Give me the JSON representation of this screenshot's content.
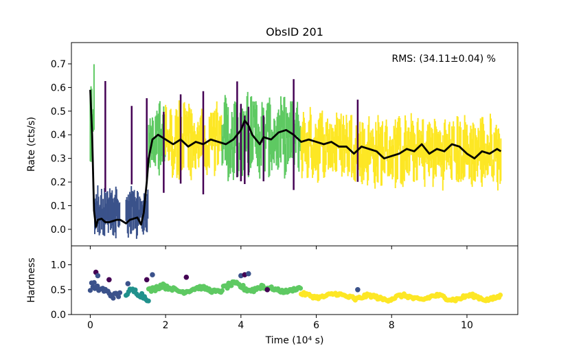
{
  "chart_data": {
    "type": "line",
    "title": "ObsID 201",
    "annotation": "RMS:  (34.11±0.04) %",
    "xlabel": "Time (10⁴ s)",
    "xlim": [
      -0.5,
      11.35
    ],
    "xticks": [
      0,
      2,
      4,
      6,
      8,
      10
    ],
    "colormap": [
      "#440154",
      "#3b528b",
      "#21918c",
      "#5ec962",
      "#fde725"
    ],
    "smooth_color": "#000000",
    "panels": {
      "rate": {
        "ylabel": "Rate (cts/s)",
        "ylim": [
          -0.07,
          0.79
        ],
        "yticks": [
          0.0,
          0.1,
          0.2,
          0.3,
          0.4,
          0.5,
          0.6,
          0.7
        ],
        "ytick_labels": [
          "0.0",
          "0.1",
          "0.2",
          "0.3",
          "0.4",
          "0.5",
          "0.6",
          "0.7"
        ],
        "smoothed_rate": {
          "x": [
            0.0,
            0.05,
            0.1,
            0.15,
            0.2,
            0.3,
            0.4,
            0.5,
            0.6,
            0.7,
            0.8,
            0.95,
            1.05,
            1.15,
            1.25,
            1.35,
            1.42,
            1.5,
            1.55,
            1.65,
            1.8,
            2.0,
            2.2,
            2.4,
            2.6,
            2.8,
            3.0,
            3.2,
            3.4,
            3.6,
            3.8,
            4.0,
            4.1,
            4.2,
            4.3,
            4.5,
            4.6,
            4.8,
            5.0,
            5.2,
            5.4,
            5.6,
            5.8,
            6.0,
            6.2,
            6.4,
            6.6,
            6.8,
            7.0,
            7.2,
            7.4,
            7.6,
            7.8,
            8.0,
            8.2,
            8.4,
            8.6,
            8.8,
            9.0,
            9.2,
            9.4,
            9.6,
            9.8,
            10.0,
            10.2,
            10.4,
            10.6,
            10.8,
            10.9
          ],
          "y": [
            0.59,
            0.4,
            0.08,
            0.01,
            0.04,
            0.045,
            0.03,
            0.03,
            0.035,
            0.04,
            0.04,
            0.025,
            0.04,
            0.045,
            0.05,
            0.02,
            0.07,
            0.2,
            0.3,
            0.38,
            0.4,
            0.38,
            0.36,
            0.38,
            0.35,
            0.37,
            0.36,
            0.38,
            0.37,
            0.36,
            0.38,
            0.42,
            0.46,
            0.44,
            0.4,
            0.36,
            0.39,
            0.38,
            0.41,
            0.42,
            0.4,
            0.37,
            0.38,
            0.37,
            0.36,
            0.37,
            0.35,
            0.35,
            0.32,
            0.35,
            0.34,
            0.33,
            0.3,
            0.31,
            0.32,
            0.34,
            0.33,
            0.36,
            0.32,
            0.34,
            0.33,
            0.36,
            0.35,
            0.32,
            0.3,
            0.33,
            0.32,
            0.34,
            0.33
          ]
        }
      },
      "hardness": {
        "ylabel": "Hardness",
        "ylim": [
          0.0,
          1.38
        ],
        "yticks": [
          0.0,
          0.5,
          1.0
        ],
        "ytick_labels": [
          "0.0",
          "0.5",
          "1.0"
        ]
      }
    },
    "segments": [
      {
        "x": [
          0.0,
          0.12
        ],
        "rate_mean": 0.5,
        "rate_spread": 0.2,
        "color": "#5ec962",
        "hard_mean": 0.55,
        "hard_spread": 0.15,
        "hard_color": "#3b528b"
      },
      {
        "x": [
          0.12,
          0.8
        ],
        "rate_mean": 0.07,
        "rate_spread": 0.05,
        "color": "#3b528b",
        "hard_mean": 0.45,
        "hard_spread": 0.12,
        "hard_color": "#3b528b"
      },
      {
        "x": [
          0.95,
          1.55
        ],
        "rate_mean": 0.08,
        "rate_spread": 0.06,
        "color": "#3b528b",
        "hard_mean": 0.4,
        "hard_spread": 0.12,
        "hard_color": "#21918c"
      },
      {
        "x": [
          1.55,
          2.0
        ],
        "rate_mean": 0.38,
        "rate_spread": 0.1,
        "color": "#5ec962",
        "hard_mean": 0.55,
        "hard_spread": 0.1,
        "hard_color": "#5ec962"
      },
      {
        "x": [
          2.0,
          3.5
        ],
        "rate_mean": 0.37,
        "rate_spread": 0.11,
        "color": "#fde725",
        "hard_mean": 0.5,
        "hard_spread": 0.07,
        "hard_color": "#5ec962"
      },
      {
        "x": [
          3.5,
          4.6
        ],
        "rate_mean": 0.4,
        "rate_spread": 0.13,
        "color": "#5ec962",
        "hard_mean": 0.55,
        "hard_spread": 0.1,
        "hard_color": "#5ec962"
      },
      {
        "x": [
          4.6,
          5.6
        ],
        "rate_mean": 0.39,
        "rate_spread": 0.11,
        "color": "#5ec962",
        "hard_mean": 0.5,
        "hard_spread": 0.06,
        "hard_color": "#5ec962"
      },
      {
        "x": [
          5.6,
          7.0
        ],
        "rate_mean": 0.36,
        "rate_spread": 0.1,
        "color": "#fde725",
        "hard_mean": 0.38,
        "hard_spread": 0.06,
        "hard_color": "#fde725"
      },
      {
        "x": [
          7.0,
          10.9
        ],
        "rate_mean": 0.33,
        "rate_spread": 0.1,
        "color": "#fde725",
        "hard_mean": 0.34,
        "hard_spread": 0.07,
        "hard_color": "#fde725"
      }
    ],
    "purple_spikes": [
      0.4,
      1.1,
      1.5,
      1.95,
      2.4,
      3.0,
      3.9,
      4.0,
      4.1,
      4.2,
      4.6,
      5.4,
      7.1
    ],
    "dark_hardness_points": [
      {
        "x": 0.15,
        "y": 0.85
      },
      {
        "x": 0.2,
        "y": 0.78
      },
      {
        "x": 1.5,
        "y": 0.7
      },
      {
        "x": 1.65,
        "y": 0.8
      },
      {
        "x": 2.55,
        "y": 0.75
      },
      {
        "x": 4.0,
        "y": 0.78
      },
      {
        "x": 4.1,
        "y": 0.8
      },
      {
        "x": 4.2,
        "y": 0.82
      },
      {
        "x": 4.7,
        "y": 0.5
      },
      {
        "x": 7.1,
        "y": 0.5
      },
      {
        "x": 0.5,
        "y": 0.7
      },
      {
        "x": 1.0,
        "y": 0.62
      }
    ]
  }
}
